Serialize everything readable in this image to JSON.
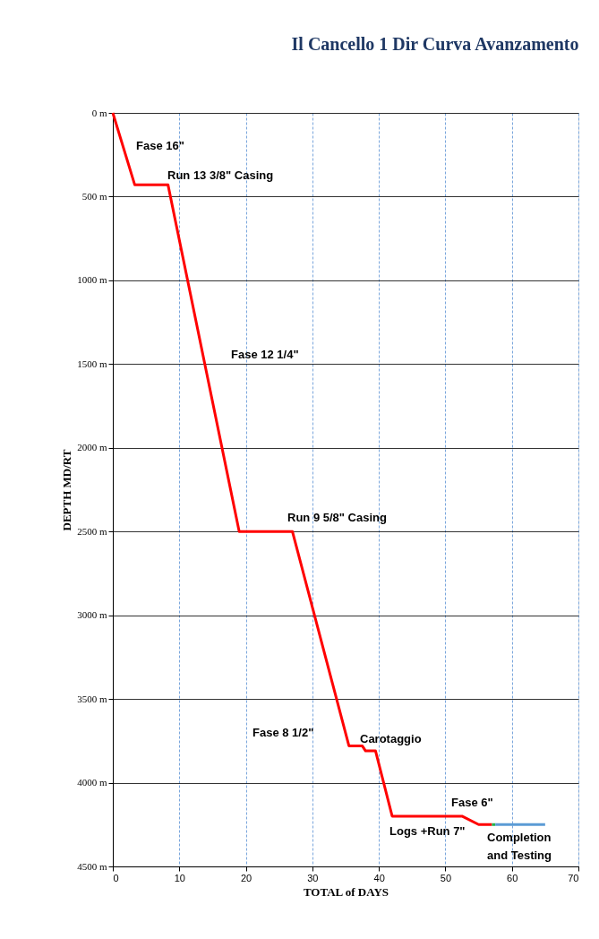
{
  "chart_data": {
    "type": "line",
    "title": "Il Cancello 1 Dir Curva Avanzamento",
    "xlabel": "TOTAL of DAYS",
    "ylabel": "DEPTH MD/RT",
    "series": [
      {
        "color": "#ff0000",
        "x": [
          0,
          3.3,
          8.3,
          19,
          27,
          35.5,
          37.5,
          38,
          39.5,
          42,
          52.5,
          55,
          57
        ],
        "values": [
          0,
          430,
          430,
          2500,
          2500,
          3780,
          3780,
          3810,
          3810,
          4200,
          4200,
          4250,
          4250
        ]
      },
      {
        "color": "#22b14c",
        "x": [
          57,
          57.5
        ],
        "values": [
          4250,
          4250
        ]
      },
      {
        "color": "#5b9bd5",
        "x": [
          57.5,
          65
        ],
        "values": [
          4250,
          4250
        ]
      }
    ],
    "xlim": [
      0,
      70
    ],
    "xticks": [
      0,
      10,
      20,
      30,
      40,
      50,
      60,
      70
    ],
    "ylim": [
      4500,
      0
    ],
    "yticks": [
      {
        "value": 0,
        "label": "0 m"
      },
      {
        "value": 500,
        "label": "500 m"
      },
      {
        "value": 1000,
        "label": "1000 m"
      },
      {
        "value": 1500,
        "label": "1500 m"
      },
      {
        "value": 2000,
        "label": "2000 m"
      },
      {
        "value": 2500,
        "label": "2500 m"
      },
      {
        "value": 3000,
        "label": "3000 m"
      },
      {
        "value": 3500,
        "label": "3500 m"
      },
      {
        "value": 4000,
        "label": "4000 m"
      },
      {
        "value": 4500,
        "label": "4500 m"
      }
    ],
    "grid": true,
    "marker": "none",
    "line_style": "solid",
    "annotations": [
      "Fase 16\"",
      "Run 13 3/8\" Casing",
      "Fase 12 1/4\"",
      "Run 9  5/8\" Casing",
      "Fase 8 1/2\"",
      "Carotaggio",
      "Fase 6\"",
      "Logs +Run 7\"",
      "Completion\nand Testing"
    ]
  }
}
